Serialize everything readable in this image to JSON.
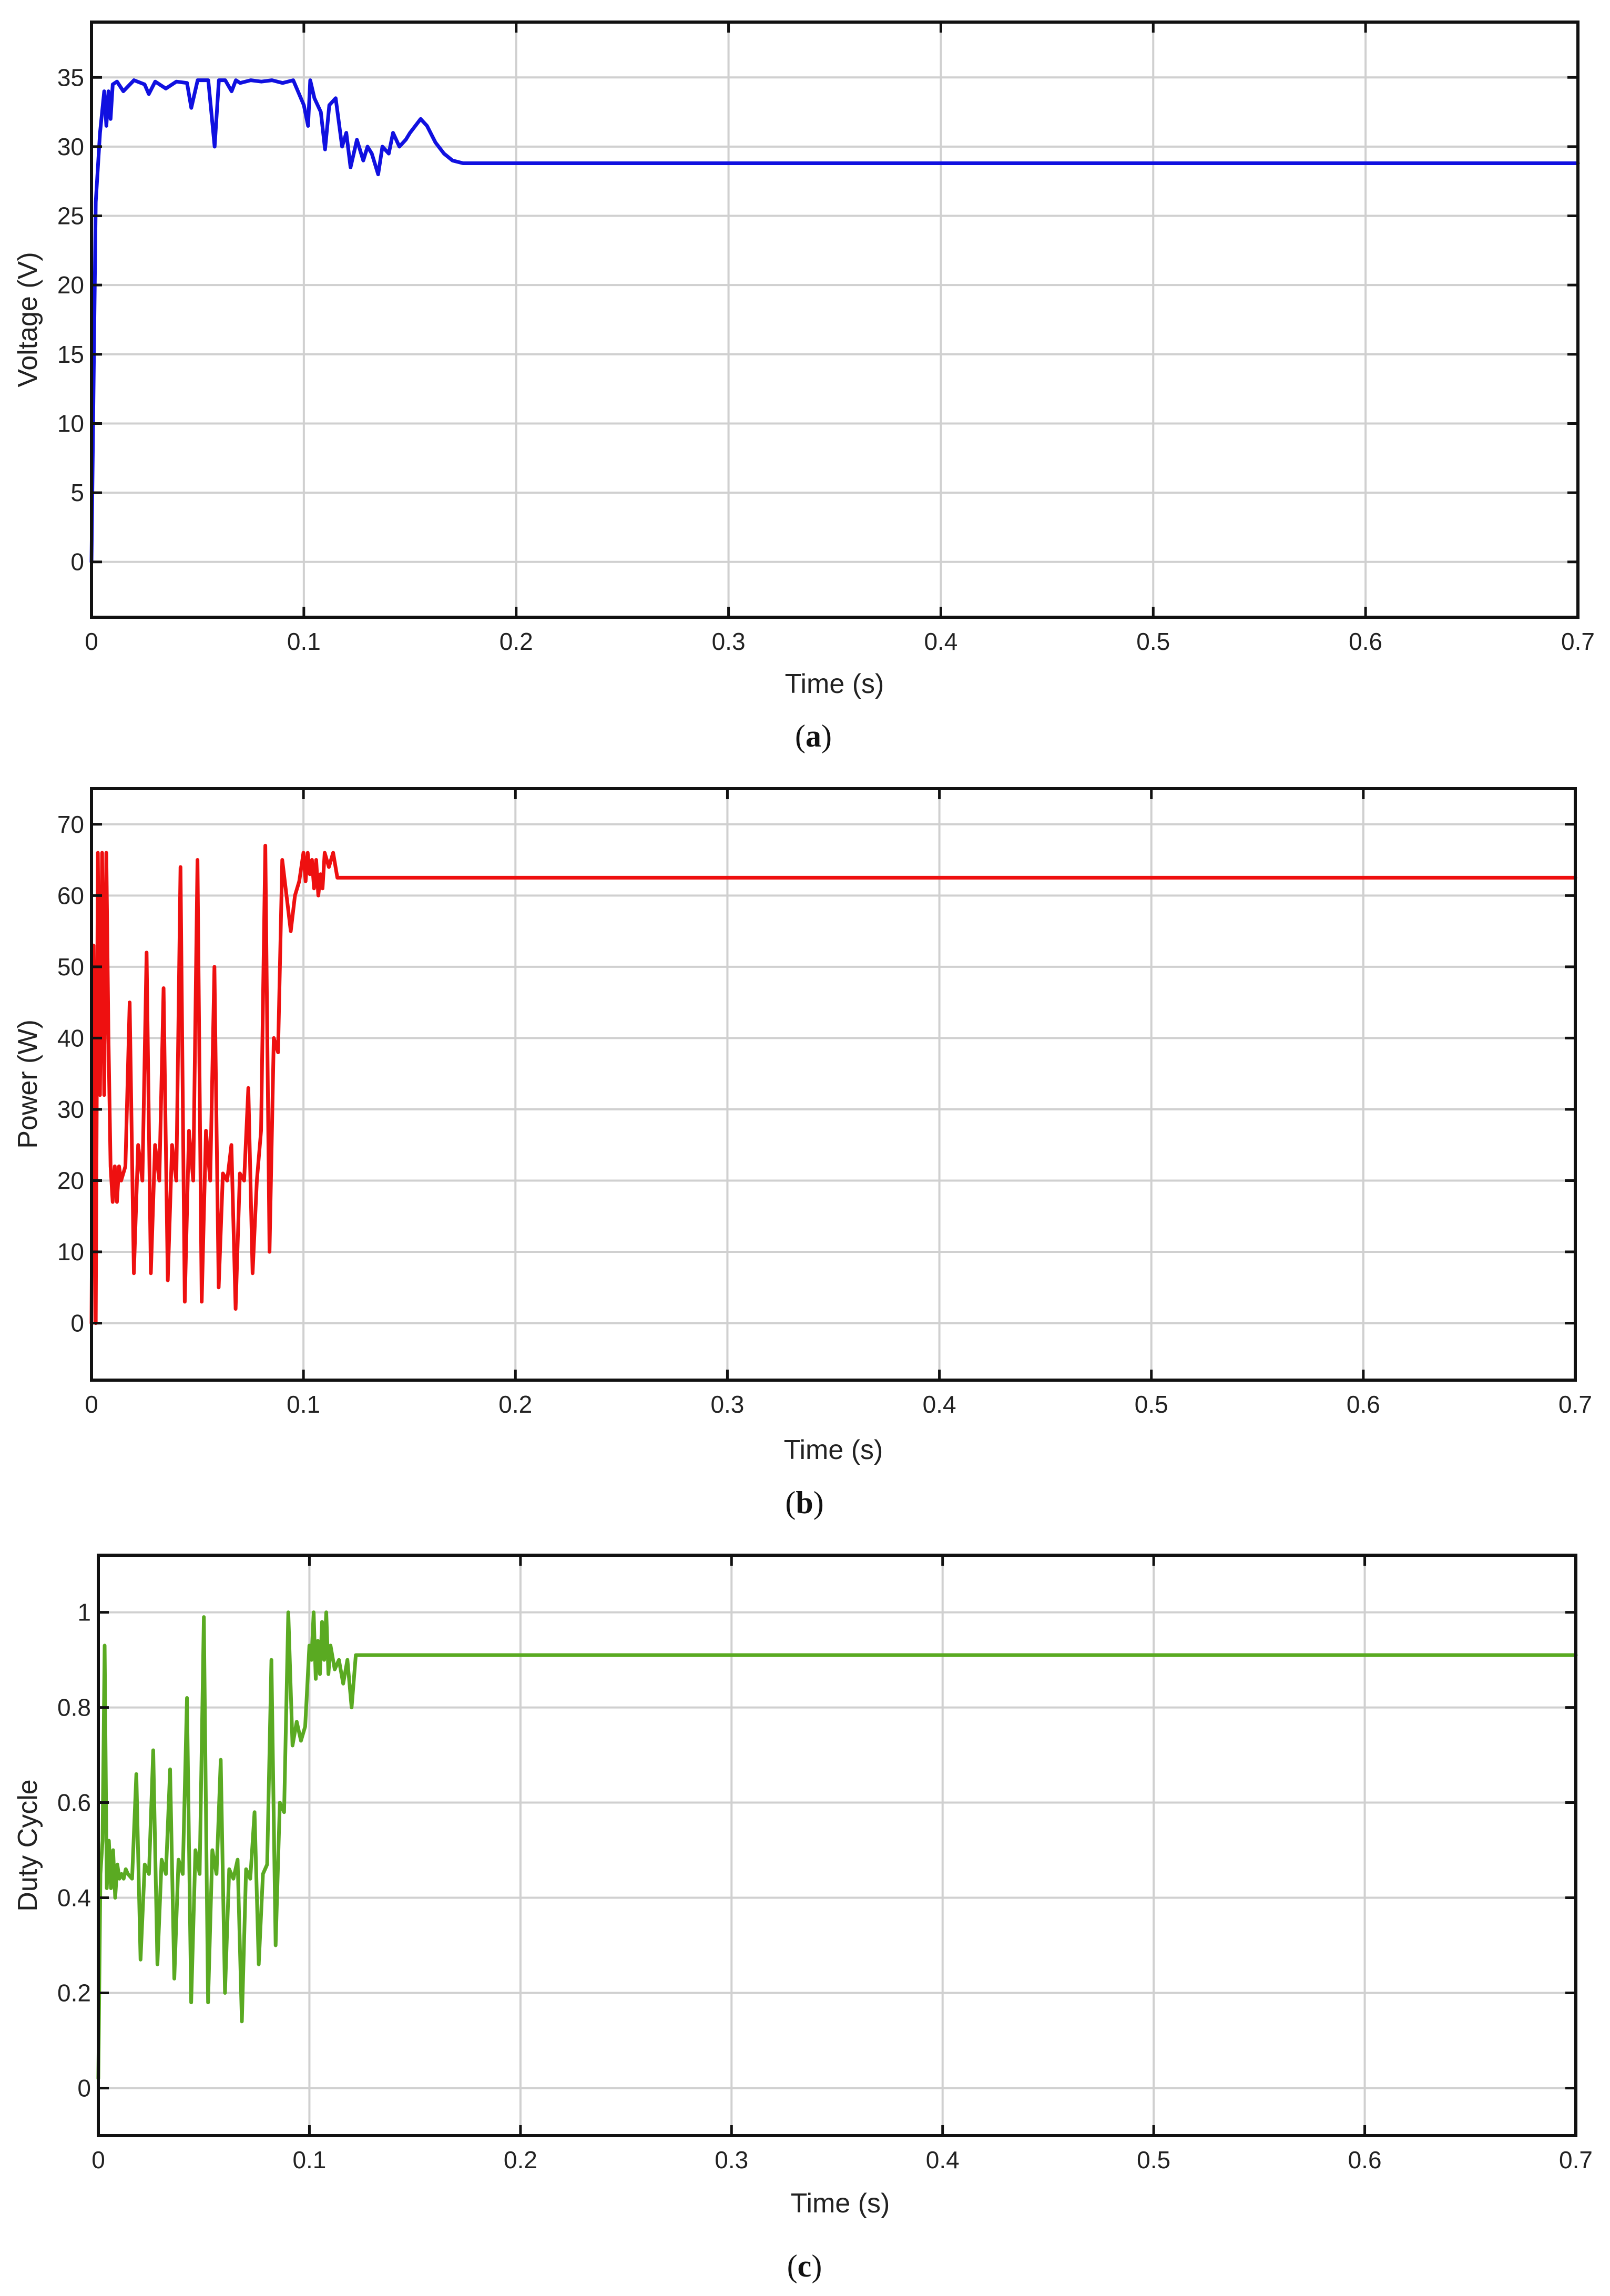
{
  "chart_data": [
    {
      "id": "a",
      "type": "line",
      "caption": "a",
      "xlabel": "Time (s)",
      "ylabel": "Voltage (V)",
      "xlim": [
        0,
        0.7
      ],
      "ylim": [
        -4,
        39
      ],
      "xticks": [
        0,
        0.1,
        0.2,
        0.3,
        0.4,
        0.5,
        0.6,
        0.7
      ],
      "xtick_labels": [
        "0",
        "0.1",
        "0.2",
        "0.3",
        "0.4",
        "0.5",
        "0.6",
        "0.7"
      ],
      "yticks": [
        0,
        5,
        10,
        15,
        20,
        25,
        30,
        35
      ],
      "ytick_labels": [
        "0",
        "5",
        "10",
        "15",
        "20",
        "25",
        "30",
        "35"
      ],
      "grid": true,
      "color": "#1010e0",
      "series": [
        {
          "x": [
            0,
            0.002,
            0.004,
            0.006,
            0.007,
            0.008,
            0.009,
            0.01,
            0.012,
            0.015,
            0.02,
            0.025,
            0.027,
            0.03,
            0.035,
            0.04,
            0.045,
            0.047,
            0.05,
            0.055,
            0.058,
            0.06,
            0.063,
            0.066,
            0.068,
            0.07,
            0.075,
            0.08,
            0.085,
            0.09,
            0.095,
            0.1,
            0.102,
            0.103,
            0.105,
            0.108,
            0.11,
            0.112,
            0.115,
            0.118,
            0.12,
            0.122,
            0.125,
            0.128,
            0.13,
            0.132,
            0.135,
            0.137,
            0.14,
            0.142,
            0.145,
            0.148,
            0.15,
            0.155,
            0.158,
            0.162,
            0.166,
            0.17,
            0.175,
            0.18,
            0.19,
            0.2,
            0.3,
            0.4,
            0.5,
            0.6,
            0.7
          ],
          "y": [
            0,
            26,
            31,
            34,
            31.5,
            34,
            32,
            34.5,
            34.7,
            34,
            34.8,
            34.5,
            33.8,
            34.7,
            34.2,
            34.7,
            34.6,
            32.8,
            34.8,
            34.8,
            30,
            34.8,
            34.8,
            34,
            34.8,
            34.6,
            34.8,
            34.7,
            34.8,
            34.6,
            34.8,
            33,
            31.5,
            34.8,
            33.5,
            32.5,
            29.8,
            33,
            33.5,
            30,
            31,
            28.5,
            30.5,
            29,
            30,
            29.5,
            28,
            30,
            29.5,
            31,
            30,
            30.5,
            31,
            32,
            31.5,
            30.3,
            29.5,
            29,
            28.8,
            28.8,
            28.8,
            28.8,
            28.8,
            28.8,
            28.8,
            28.8,
            28.8
          ]
        }
      ]
    },
    {
      "id": "b",
      "type": "line",
      "caption": "b",
      "xlabel": "Time (s)",
      "ylabel": "Power (W)",
      "xlim": [
        0,
        0.7
      ],
      "ylim": [
        -8,
        75
      ],
      "xticks": [
        0,
        0.1,
        0.2,
        0.3,
        0.4,
        0.5,
        0.6,
        0.7
      ],
      "xtick_labels": [
        "0",
        "0.1",
        "0.2",
        "0.3",
        "0.4",
        "0.5",
        "0.6",
        "0.7"
      ],
      "yticks": [
        0,
        10,
        20,
        30,
        40,
        50,
        60,
        70
      ],
      "ytick_labels": [
        "0",
        "10",
        "20",
        "30",
        "40",
        "50",
        "60",
        "70"
      ],
      "grid": true,
      "color": "#ee1010",
      "series": [
        {
          "x": [
            0,
            0.001,
            0.002,
            0.003,
            0.004,
            0.005,
            0.006,
            0.007,
            0.008,
            0.009,
            0.01,
            0.011,
            0.012,
            0.013,
            0.014,
            0.016,
            0.018,
            0.02,
            0.022,
            0.024,
            0.026,
            0.028,
            0.03,
            0.032,
            0.034,
            0.036,
            0.038,
            0.04,
            0.042,
            0.044,
            0.046,
            0.048,
            0.05,
            0.052,
            0.054,
            0.056,
            0.058,
            0.06,
            0.062,
            0.064,
            0.066,
            0.068,
            0.07,
            0.072,
            0.074,
            0.076,
            0.078,
            0.08,
            0.082,
            0.084,
            0.086,
            0.088,
            0.09,
            0.092,
            0.094,
            0.096,
            0.098,
            0.1,
            0.101,
            0.102,
            0.103,
            0.104,
            0.105,
            0.106,
            0.107,
            0.108,
            0.109,
            0.11,
            0.112,
            0.114,
            0.116,
            0.118,
            0.12,
            0.122,
            0.125,
            0.128,
            0.13,
            0.132,
            0.135,
            0.138,
            0.14,
            0.145,
            0.15,
            0.155,
            0.158,
            0.162,
            0.166,
            0.17,
            0.175,
            0.18,
            0.19,
            0.2,
            0.3,
            0.4,
            0.5,
            0.6,
            0.7
          ],
          "y": [
            0,
            53,
            0,
            66,
            32,
            66,
            32,
            66,
            40,
            22,
            17,
            22,
            17,
            22,
            20,
            22,
            45,
            7,
            25,
            20,
            52,
            7,
            25,
            20,
            47,
            6,
            25,
            20,
            64,
            3,
            27,
            20,
            65,
            3,
            27,
            20,
            50,
            5,
            21,
            20,
            25,
            2,
            21,
            20,
            33,
            7,
            20,
            27,
            67,
            10,
            40,
            38,
            65,
            60,
            55,
            60,
            62,
            66,
            62,
            66,
            63,
            65,
            61,
            65,
            60,
            63,
            61,
            66,
            64,
            66,
            62.5,
            62.5,
            62.5,
            62.5,
            62.5,
            62.5,
            62.5,
            62.5,
            62.5,
            62.5,
            62.5,
            62.5,
            62.5,
            62.5,
            62.5,
            62.5,
            62.5,
            62.5,
            62.5,
            62.5,
            62.5,
            62.5,
            62.5,
            62.5,
            62.5,
            62.5,
            62.5
          ]
        }
      ]
    },
    {
      "id": "c",
      "type": "line",
      "caption": "c",
      "xlabel": "Time (s)",
      "ylabel": "Duty Cycle",
      "xlim": [
        0,
        0.7
      ],
      "ylim": [
        -0.1,
        1.12
      ],
      "xticks": [
        0,
        0.1,
        0.2,
        0.3,
        0.4,
        0.5,
        0.6,
        0.7
      ],
      "xtick_labels": [
        "0",
        "0.1",
        "0.2",
        "0.3",
        "0.4",
        "0.5",
        "0.6",
        "0.7"
      ],
      "yticks": [
        0,
        0.2,
        0.4,
        0.6,
        0.8,
        1
      ],
      "ytick_labels": [
        "0",
        "0.2",
        "0.4",
        "0.6",
        "0.8",
        "1"
      ],
      "grid": true,
      "color": "#5aaa22",
      "series": [
        {
          "x": [
            0,
            0.001,
            0.002,
            0.003,
            0.004,
            0.005,
            0.006,
            0.007,
            0.008,
            0.009,
            0.01,
            0.011,
            0.012,
            0.013,
            0.014,
            0.016,
            0.018,
            0.02,
            0.022,
            0.024,
            0.026,
            0.028,
            0.03,
            0.032,
            0.034,
            0.036,
            0.038,
            0.04,
            0.042,
            0.044,
            0.046,
            0.048,
            0.05,
            0.052,
            0.054,
            0.056,
            0.058,
            0.06,
            0.062,
            0.064,
            0.066,
            0.068,
            0.07,
            0.072,
            0.074,
            0.076,
            0.078,
            0.08,
            0.082,
            0.084,
            0.086,
            0.088,
            0.09,
            0.092,
            0.094,
            0.096,
            0.098,
            0.1,
            0.101,
            0.102,
            0.103,
            0.104,
            0.105,
            0.106,
            0.107,
            0.108,
            0.109,
            0.11,
            0.112,
            0.114,
            0.116,
            0.118,
            0.12,
            0.122,
            0.124,
            0.126,
            0.128,
            0.13,
            0.132,
            0.134,
            0.136,
            0.138,
            0.14,
            0.142,
            0.145,
            0.148,
            0.15,
            0.152,
            0.155,
            0.158,
            0.16,
            0.165,
            0.17,
            0.2,
            0.3,
            0.4,
            0.5,
            0.6,
            0.7
          ],
          "y": [
            0.02,
            0.45,
            0.52,
            0.93,
            0.42,
            0.52,
            0.42,
            0.5,
            0.4,
            0.47,
            0.44,
            0.45,
            0.44,
            0.46,
            0.45,
            0.44,
            0.66,
            0.27,
            0.47,
            0.45,
            0.71,
            0.26,
            0.48,
            0.45,
            0.67,
            0.23,
            0.48,
            0.45,
            0.82,
            0.18,
            0.5,
            0.45,
            0.99,
            0.18,
            0.5,
            0.45,
            0.69,
            0.2,
            0.46,
            0.44,
            0.48,
            0.14,
            0.46,
            0.44,
            0.58,
            0.26,
            0.45,
            0.47,
            0.9,
            0.3,
            0.6,
            0.58,
            1.0,
            0.72,
            0.77,
            0.73,
            0.76,
            0.93,
            0.9,
            1.0,
            0.86,
            0.94,
            0.87,
            0.98,
            0.9,
            1.0,
            0.87,
            0.93,
            0.88,
            0.9,
            0.85,
            0.9,
            0.8,
            0.91,
            0.91,
            0.91,
            0.91,
            0.91,
            0.91,
            0.91,
            0.91,
            0.91,
            0.91,
            0.91,
            0.91,
            0.91,
            0.91,
            0.91,
            0.91,
            0.91,
            0.91,
            0.91,
            0.91,
            0.91,
            0.91,
            0.91,
            0.91,
            0.91,
            0.91
          ]
        }
      ]
    }
  ]
}
